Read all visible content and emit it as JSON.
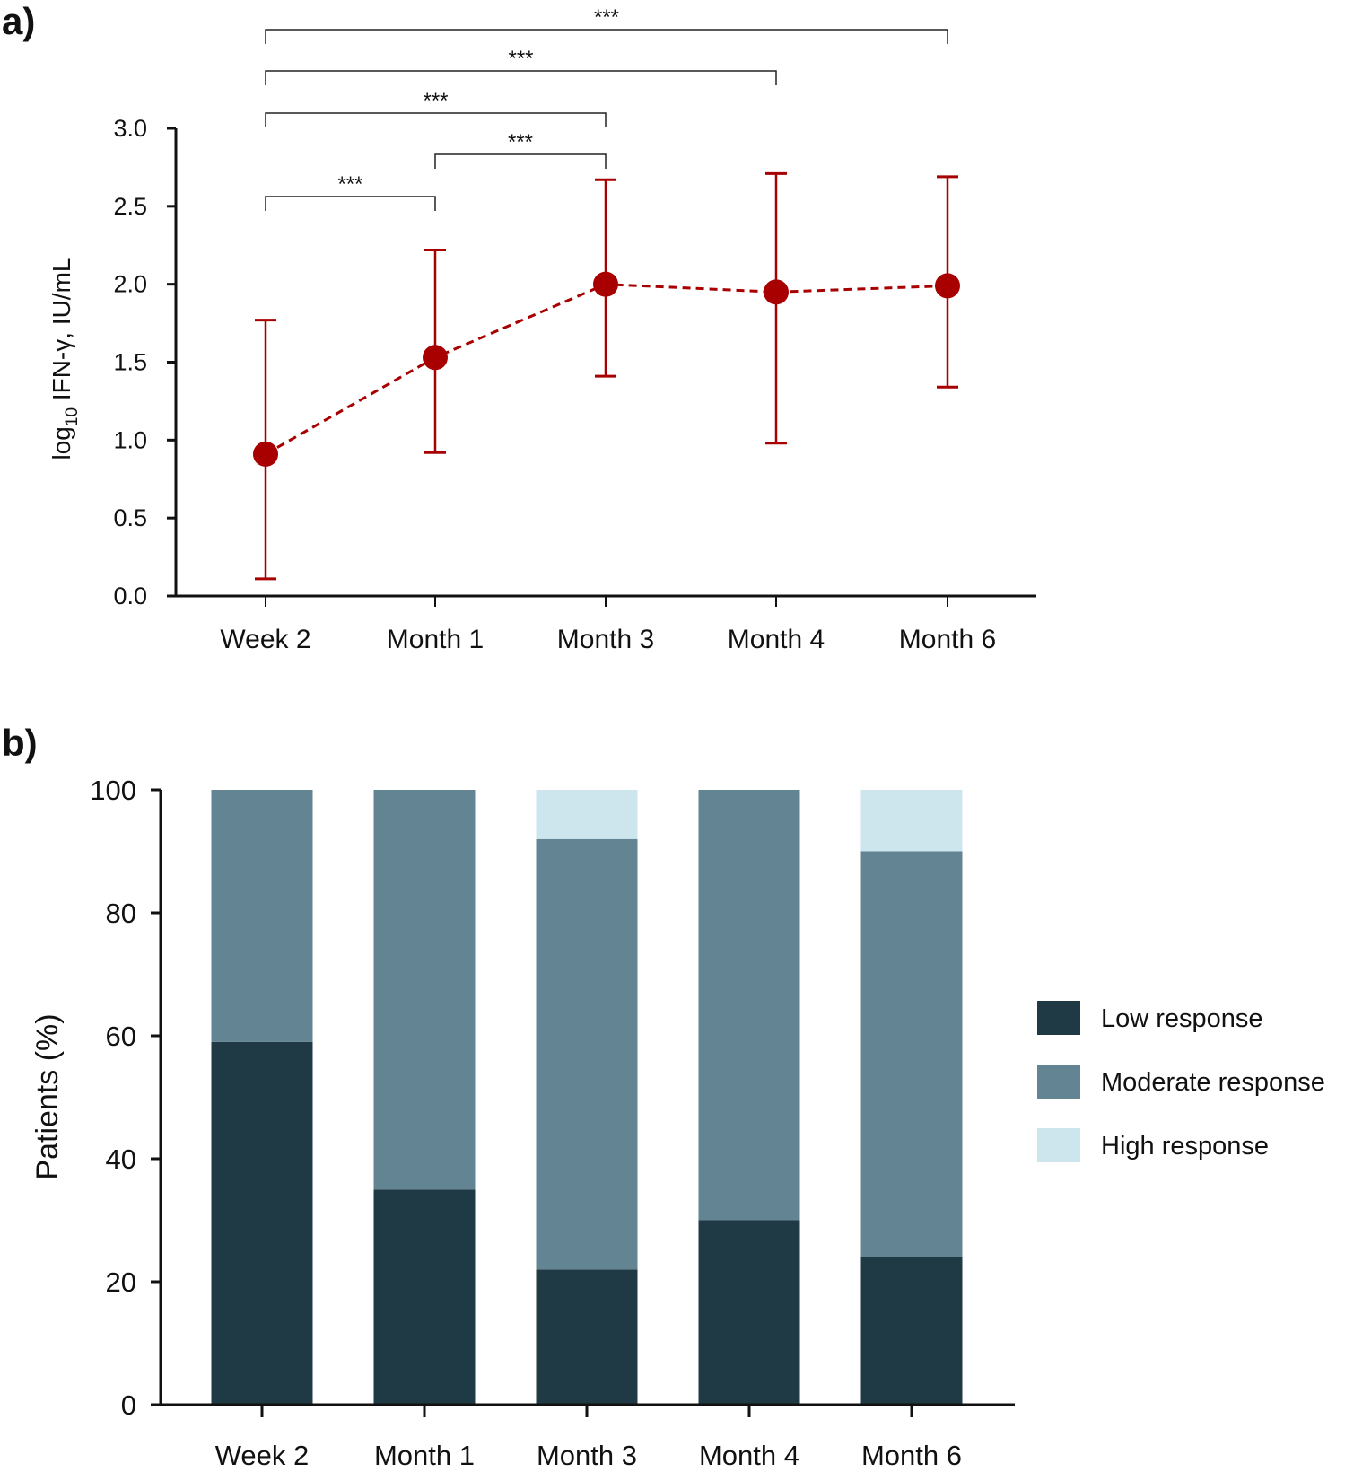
{
  "chart_data": [
    {
      "panel_label": "a)",
      "type": "line",
      "categories": [
        "Week 2",
        "Month 1",
        "Month 3",
        "Month 4",
        "Month 6"
      ],
      "values": [
        0.91,
        1.53,
        2.0,
        1.95,
        1.99
      ],
      "error_low": [
        0.11,
        0.92,
        1.41,
        0.98,
        1.34
      ],
      "error_high": [
        1.77,
        2.22,
        2.67,
        2.71,
        2.69
      ],
      "ylabel_main": "log",
      "ylabel_sub": "10",
      "ylabel_rest": " IFN-γ, IU/mL",
      "ylim": [
        0,
        3.0
      ],
      "yticks": [
        "0.0",
        "0.5",
        "1.0",
        "1.5",
        "2.0",
        "2.5",
        "3.0"
      ],
      "line_style": "dashed",
      "color": "#a80000",
      "significance": [
        {
          "from": "Week 2",
          "to": "Month 1",
          "label": "***"
        },
        {
          "from": "Month 1",
          "to": "Month 3",
          "label": "***"
        },
        {
          "from": "Week 2",
          "to": "Month 3",
          "label": "***"
        },
        {
          "from": "Week 2",
          "to": "Month 4",
          "label": "***"
        },
        {
          "from": "Week 2",
          "to": "Month 6",
          "label": "***"
        }
      ]
    },
    {
      "panel_label": "b)",
      "type": "bar",
      "stacked": true,
      "categories": [
        "Week 2",
        "Month 1",
        "Month 3",
        "Month 4",
        "Month 6"
      ],
      "series": [
        {
          "name": "Low response",
          "values": [
            59,
            35,
            22,
            30,
            24
          ],
          "color": "#1f3a44"
        },
        {
          "name": "Moderate response",
          "values": [
            41,
            65,
            70,
            70,
            66
          ],
          "color": "#638593"
        },
        {
          "name": "High response",
          "values": [
            0,
            0,
            8,
            0,
            10
          ],
          "color": "#cde5ed"
        }
      ],
      "ylabel": "Patients (%)",
      "ylim": [
        0,
        100
      ],
      "yticks": [
        "0",
        "20",
        "40",
        "60",
        "80",
        "100"
      ],
      "legend_position": "right"
    }
  ]
}
